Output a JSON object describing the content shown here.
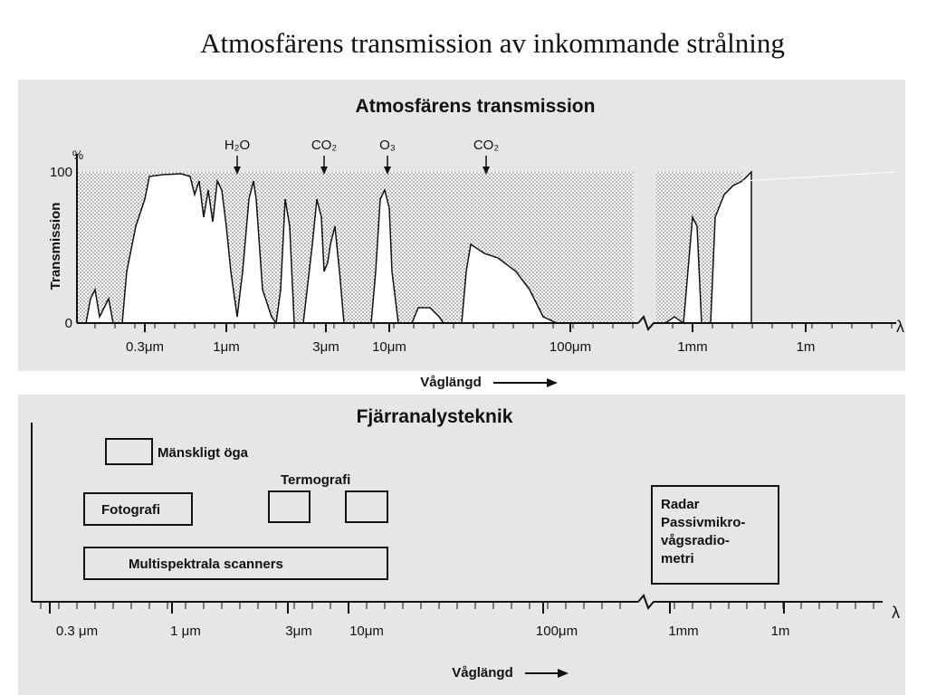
{
  "title": "Atmosfärens transmission av inkommande strålning",
  "transmission": {
    "title": "Atmosfärens transmission",
    "unit": "%",
    "y_axis_label": "Transmission",
    "y_top": "100",
    "y_bottom": "0",
    "gases": [
      "H₂O",
      "CO₂",
      "O₃",
      "CO₂"
    ],
    "x_labels": [
      "0.3μm",
      "1μm",
      "3μm",
      "10μm",
      "100μm",
      "1mm",
      "1m"
    ],
    "lambda": "λ",
    "x_axis_label": "Våglängd"
  },
  "remote_sensing": {
    "title": "Fjärranalysteknik",
    "boxes": [
      "Mänskligt öga",
      "Termografi",
      "Fotografi",
      "Multispektrala scanners"
    ],
    "radar_lines": [
      "Radar",
      "Passivmikro-",
      "vågsradio-",
      "metri"
    ],
    "x_labels": [
      "0.3 μm",
      "1 μm",
      "3μm",
      "10μm",
      "100μm",
      "1mm",
      "1m"
    ],
    "lambda": "λ",
    "x_axis_label": "Våglängd"
  }
}
